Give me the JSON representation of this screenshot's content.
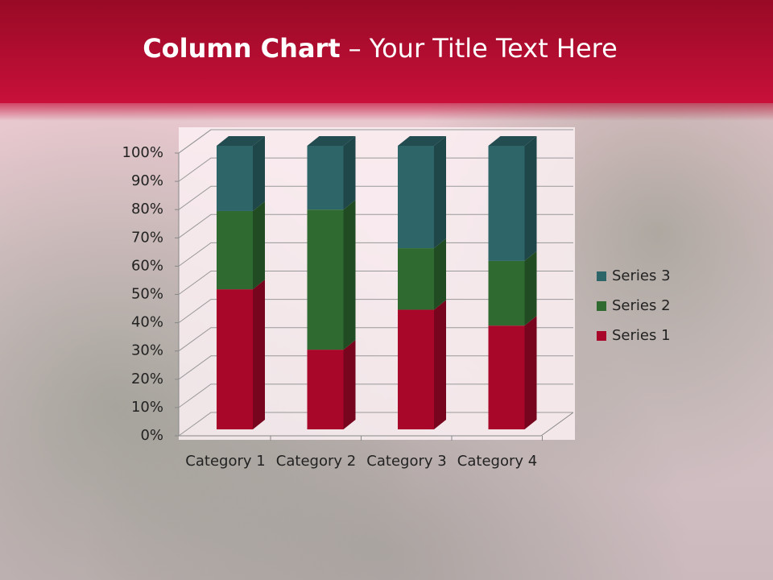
{
  "chart_data": {
    "type": "stacked_column_3d",
    "title": {
      "bold": "Column Chart",
      "rest": "– Your Title Text Here"
    },
    "categories": [
      "Category 1",
      "Category 2",
      "Category 3",
      "Category 4"
    ],
    "series": [
      {
        "name": "Series 1",
        "color": "#a8072a",
        "values": [
          49.4,
          28.1,
          42.2,
          36.6
        ]
      },
      {
        "name": "Series 2",
        "color": "#2f6b31",
        "values": [
          27.6,
          49.4,
          21.7,
          22.8
        ]
      },
      {
        "name": "Series 3",
        "color": "#2d6569",
        "values": [
          23.0,
          22.5,
          36.1,
          40.6
        ]
      }
    ],
    "ylim": [
      0,
      100
    ],
    "yticks": [
      {
        "value": 0,
        "label": "0%"
      },
      {
        "value": 10,
        "label": "10%"
      },
      {
        "value": 20,
        "label": "20%"
      },
      {
        "value": 30,
        "label": "30%"
      },
      {
        "value": 40,
        "label": "40%"
      },
      {
        "value": 50,
        "label": "50%"
      },
      {
        "value": 60,
        "label": "60%"
      },
      {
        "value": 70,
        "label": "70%"
      },
      {
        "value": 80,
        "label": "80%"
      },
      {
        "value": 90,
        "label": "90%"
      },
      {
        "value": 100,
        "label": "100%"
      }
    ],
    "grid": true,
    "legend": "right"
  }
}
